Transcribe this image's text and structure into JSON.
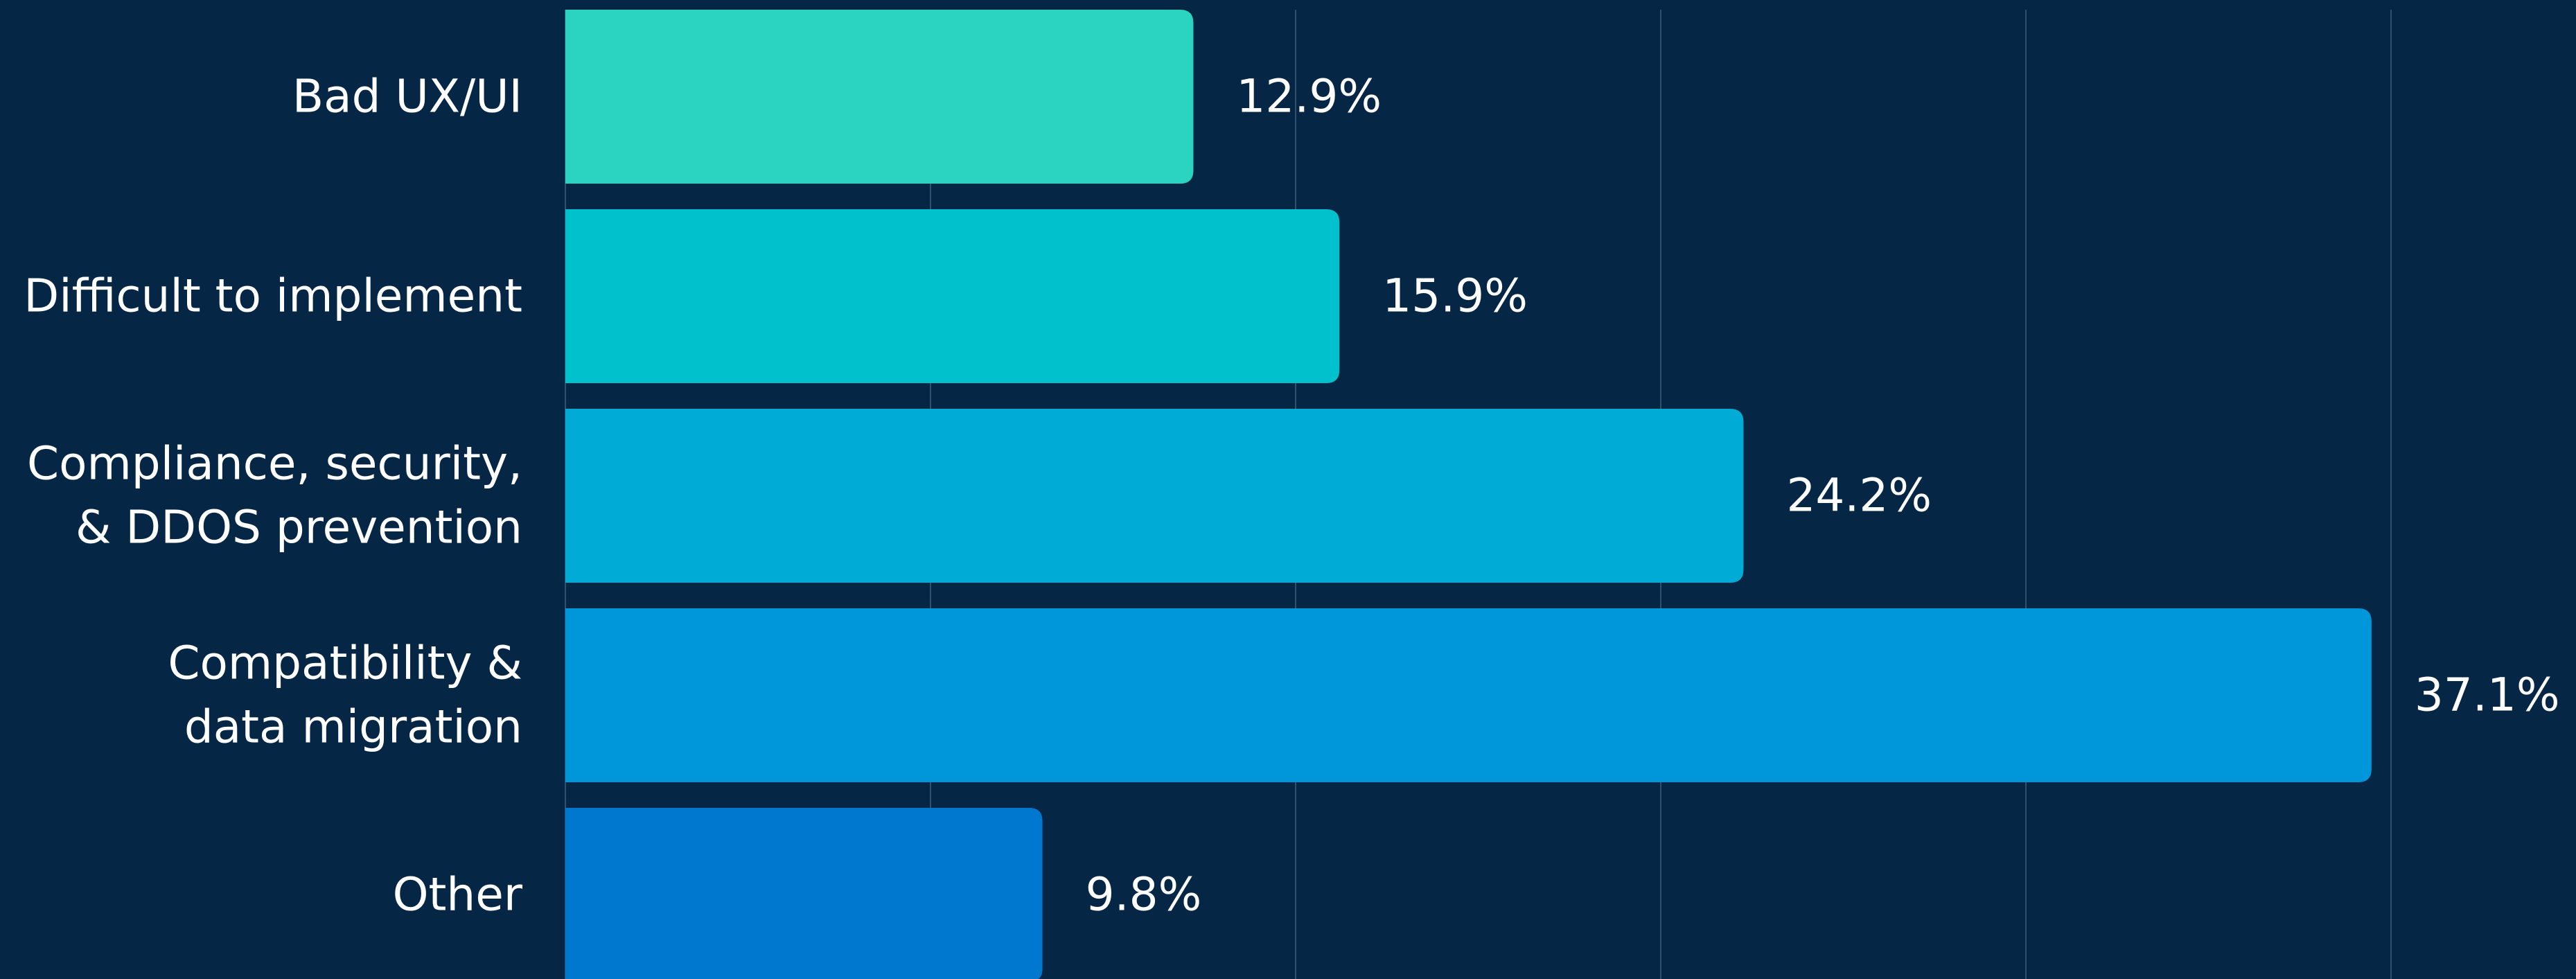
{
  "chart_data": {
    "type": "bar",
    "orientation": "horizontal",
    "categories": [
      "Bad UX/UI",
      "Difficult to implement",
      "Compliance, security,\n& DDOS prevention",
      "Compatibility &\ndata migration",
      "Other"
    ],
    "values": [
      12.9,
      15.9,
      24.2,
      37.1,
      9.8
    ],
    "value_labels": [
      "12.9%",
      "15.9%",
      "24.2%",
      "37.1%",
      "9.8%"
    ],
    "colors": [
      "#2ad4c0",
      "#00c1cc",
      "#00acd6",
      "#0096da",
      "#0078d0"
    ],
    "xlim": [
      0,
      41.3
    ],
    "xticks": [
      0,
      7.5,
      15,
      22.5,
      30,
      37.5
    ],
    "grid": true
  }
}
